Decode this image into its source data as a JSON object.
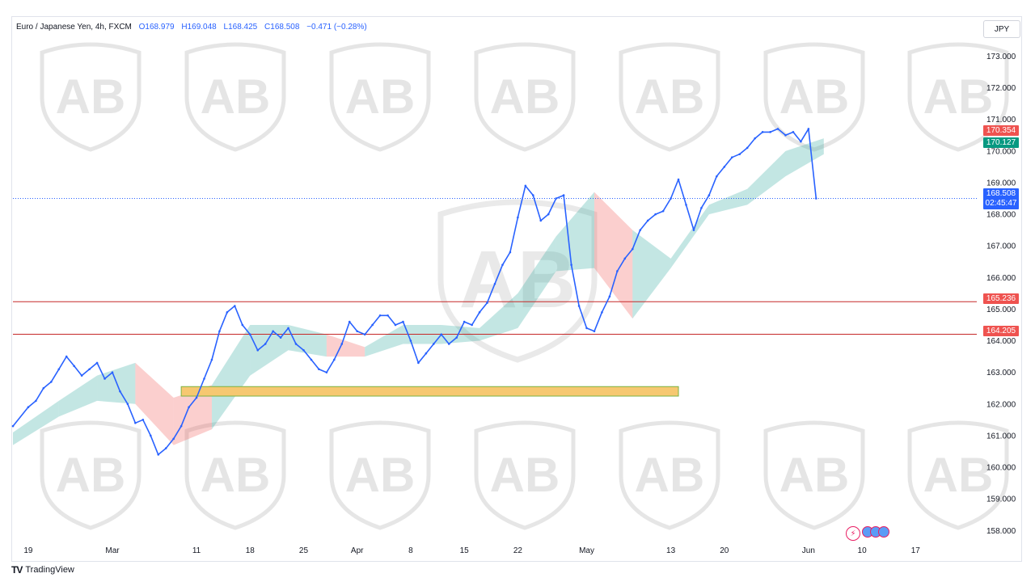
{
  "header": {
    "symbol": "Euro / Japanese Yen, 4h, FXCM",
    "open": "O168.979",
    "high": "H169.048",
    "low": "L168.425",
    "close": "C168.508",
    "change": "−0.471 (−0.28%)"
  },
  "currency": "JPY",
  "brand": "TradingView",
  "watermark_icon": "arab-business-shield-icon",
  "colors": {
    "up": "#2962ff",
    "level_line": "#c62828",
    "zone_fill": "#f6c871",
    "zone_border": "#7cb342",
    "cloud_green": "#26a69a",
    "cloud_red": "#ef5350",
    "current_price": "#2962ff"
  },
  "tags": {
    "upper_red": "170.354",
    "upper_green": "170.127",
    "current_price": "168.508",
    "countdown": "02:45:47",
    "level_1": "165.236",
    "level_2": "164.205"
  },
  "chart_data": {
    "type": "line",
    "title": "",
    "xlabel": "",
    "ylabel": "",
    "ylim": [
      157.7,
      173.6
    ],
    "y_ticks": [
      "173.000",
      "172.000",
      "171.000",
      "170.000",
      "169.000",
      "168.000",
      "167.000",
      "166.000",
      "165.000",
      "164.000",
      "163.000",
      "162.000",
      "161.000",
      "160.000",
      "159.000",
      "158.000"
    ],
    "x_ticks": [
      "19",
      "Mar",
      "11",
      "18",
      "25",
      "Apr",
      "8",
      "15",
      "22",
      "May",
      "13",
      "20",
      "Jun",
      "10",
      "17"
    ],
    "x_tick_values": [
      0,
      11,
      22,
      29,
      36,
      43,
      50,
      57,
      64,
      73,
      84,
      91,
      102,
      109,
      116
    ],
    "x_tick_unit": "days since 19",
    "x_range": [
      -2,
      124
    ],
    "series": [
      {
        "name": "",
        "x": [
          -2,
          0,
          1,
          2,
          3,
          4,
          5,
          6,
          7,
          8,
          9,
          10,
          11,
          12,
          13,
          14,
          15,
          16,
          17,
          18,
          19,
          20,
          21,
          22,
          23,
          24,
          25,
          26,
          27,
          28,
          29,
          30,
          31,
          32,
          33,
          34,
          35,
          36,
          37,
          38,
          39,
          40,
          41,
          42,
          43,
          44,
          45,
          46,
          47,
          48,
          49,
          50,
          51,
          52,
          53,
          54,
          55,
          56,
          57,
          58,
          59,
          60,
          61,
          62,
          63,
          64,
          65,
          66,
          67,
          68,
          69,
          70,
          71,
          72,
          73,
          74,
          75,
          76,
          77,
          78,
          79,
          80,
          81,
          82,
          83,
          84,
          85,
          86,
          87,
          88,
          89,
          90,
          91,
          92,
          93,
          94,
          95,
          96,
          97,
          98,
          99,
          100,
          101,
          102,
          103
        ],
        "values": [
          161.3,
          161.9,
          162.1,
          162.5,
          162.7,
          163.1,
          163.5,
          163.2,
          162.9,
          163.1,
          163.3,
          162.8,
          163.0,
          162.4,
          162.0,
          161.4,
          161.5,
          161.0,
          160.4,
          160.6,
          160.9,
          161.3,
          161.9,
          162.2,
          162.8,
          163.4,
          164.3,
          164.9,
          165.1,
          164.5,
          164.2,
          163.7,
          163.9,
          164.3,
          164.1,
          164.4,
          163.9,
          163.7,
          163.4,
          163.1,
          163.0,
          163.4,
          163.9,
          164.6,
          164.3,
          164.2,
          164.5,
          164.8,
          164.8,
          164.5,
          164.6,
          164.0,
          163.3,
          163.6,
          163.9,
          164.2,
          163.9,
          164.1,
          164.6,
          164.5,
          164.9,
          165.2,
          165.8,
          166.4,
          166.8,
          167.9,
          168.9,
          168.6,
          167.8,
          168.0,
          168.5,
          168.6,
          166.4,
          165.1,
          164.4,
          164.3,
          164.9,
          165.4,
          166.2,
          166.6,
          166.9,
          167.5,
          167.8,
          168.0,
          168.1,
          168.5,
          169.1,
          168.3,
          167.5,
          168.2,
          168.6,
          169.2,
          169.5,
          169.8,
          169.9,
          170.1,
          170.4,
          170.6,
          170.6,
          170.7,
          170.5,
          170.6,
          170.3,
          170.7,
          168.5
        ]
      }
    ],
    "horizontal_levels": [
      165.236,
      164.205
    ],
    "zone": {
      "x_from": 20,
      "x_to": 85,
      "y_from": 162.25,
      "y_to": 162.55
    },
    "cloud": {
      "x": [
        -2,
        4,
        9,
        14,
        19,
        24,
        29,
        34,
        39,
        44,
        49,
        54,
        59,
        64,
        69,
        74,
        79,
        84,
        89,
        94,
        99,
        104
      ],
      "lower": [
        160.7,
        161.6,
        162.1,
        162.0,
        160.7,
        161.2,
        162.9,
        163.7,
        163.5,
        163.5,
        163.9,
        163.9,
        164.0,
        164.4,
        166.2,
        166.3,
        164.7,
        166.3,
        168.0,
        168.3,
        169.2,
        169.9
      ],
      "upper": [
        161.1,
        162.1,
        162.9,
        163.3,
        162.2,
        162.6,
        164.5,
        164.5,
        164.2,
        163.8,
        164.5,
        164.5,
        164.4,
        165.5,
        167.3,
        168.7,
        167.5,
        166.6,
        168.3,
        168.8,
        170.0,
        170.4
      ]
    }
  }
}
